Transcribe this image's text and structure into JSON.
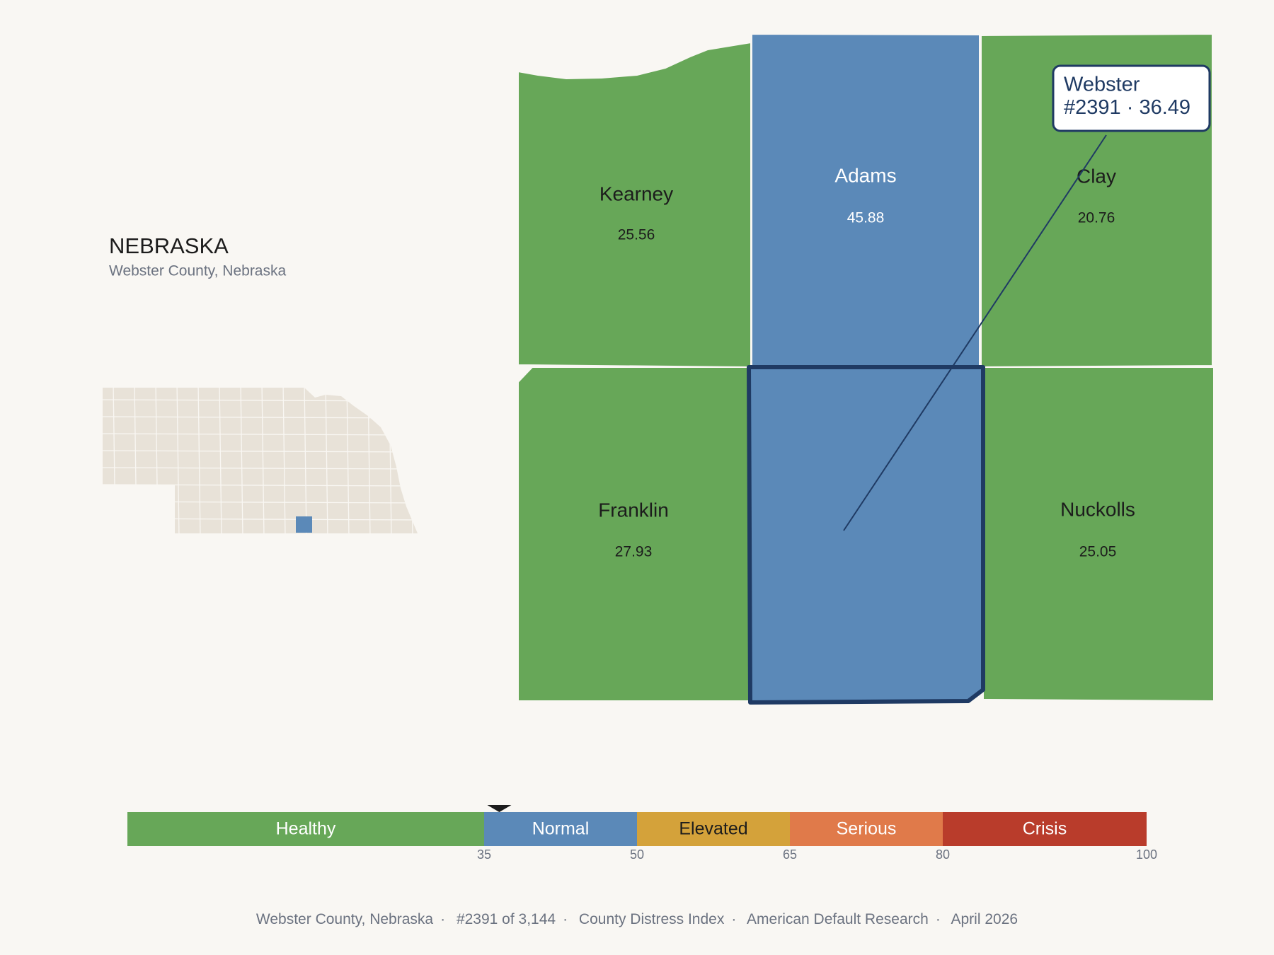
{
  "header": {
    "title": "NEBRASKA",
    "subtitle": "Webster County, Nebraska"
  },
  "counties": [
    {
      "name": "Kearney",
      "value": 25.56,
      "color": "#67a758",
      "label_color": "#1c1c1c"
    },
    {
      "name": "Adams",
      "value": 45.88,
      "color": "#5b89b8",
      "label_color": "#ffffff"
    },
    {
      "name": "Clay",
      "value": 20.76,
      "color": "#67a758",
      "label_color": "#1c1c1c"
    },
    {
      "name": "Franklin",
      "value": 27.93,
      "color": "#67a758",
      "label_color": "#1c1c1c"
    },
    {
      "name": "Nuckolls",
      "value": 25.05,
      "color": "#67a758",
      "label_color": "#1c1c1c"
    }
  ],
  "callout": {
    "name": "Webster",
    "rank": "#2391",
    "separator": "·",
    "score": 36.49,
    "color": "#5b89b8",
    "border_color": "#1f3a63"
  },
  "scale": {
    "lim": [
      0,
      100
    ],
    "ticks": [
      35,
      50,
      65,
      80,
      100
    ],
    "bands": [
      {
        "label": "Healthy",
        "color": "#67a758",
        "label_color": "#ffffff"
      },
      {
        "label": "Normal",
        "color": "#5b89b8",
        "label_color": "#ffffff"
      },
      {
        "label": "Elevated",
        "color": "#d4a23a",
        "label_color": "#1c1c1c"
      },
      {
        "label": "Serious",
        "color": "#e07a4a",
        "label_color": "#ffffff"
      },
      {
        "label": "Crisis",
        "color": "#b93c2b",
        "label_color": "#ffffff"
      }
    ]
  },
  "footer": {
    "items": [
      "Webster County, Nebraska",
      "#2391 of 3,144",
      "County Distress Index",
      "American Default Research",
      "April 2026"
    ],
    "separator": "·"
  }
}
